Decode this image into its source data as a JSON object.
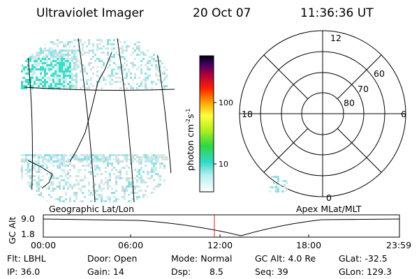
{
  "header": {
    "title": "Ultraviolet Imager",
    "date": "20 Oct 07",
    "time": "11:36:36 UT"
  },
  "colorbar": {
    "label": {
      "base": "photon cm",
      "exp1": "-2",
      "unit": "s",
      "exp2": "-1"
    },
    "ticks": [
      "100",
      "10"
    ]
  },
  "polar": {
    "mlt": {
      "top": "12",
      "left": "18",
      "right": "6",
      "bottom": "0"
    },
    "rings": [
      "60",
      "70",
      "80"
    ]
  },
  "panel_labels": {
    "left": "Geographic Lat/Lon",
    "right": "Apex MLat/MLT"
  },
  "timeline": {
    "axis_label": "GC Alt",
    "y_top": "9.0",
    "y_bottom": "1.8",
    "times": [
      "00:00",
      "06:00",
      "12:00",
      "18:00",
      "23:59"
    ]
  },
  "footer": {
    "flt": "Flt: LBHL",
    "ip": "IP: 36.0",
    "door": "Door: Open",
    "gain": "Gain: 14",
    "mode": "Mode: Normal",
    "dsp_label": "Dsp:",
    "dsp_value": "8.5",
    "gc_alt": "GC Alt: 4.0 Re",
    "seq": "Seq: 39",
    "glat": "GLat: -32.5",
    "glon": "GLon: 129.3"
  }
}
